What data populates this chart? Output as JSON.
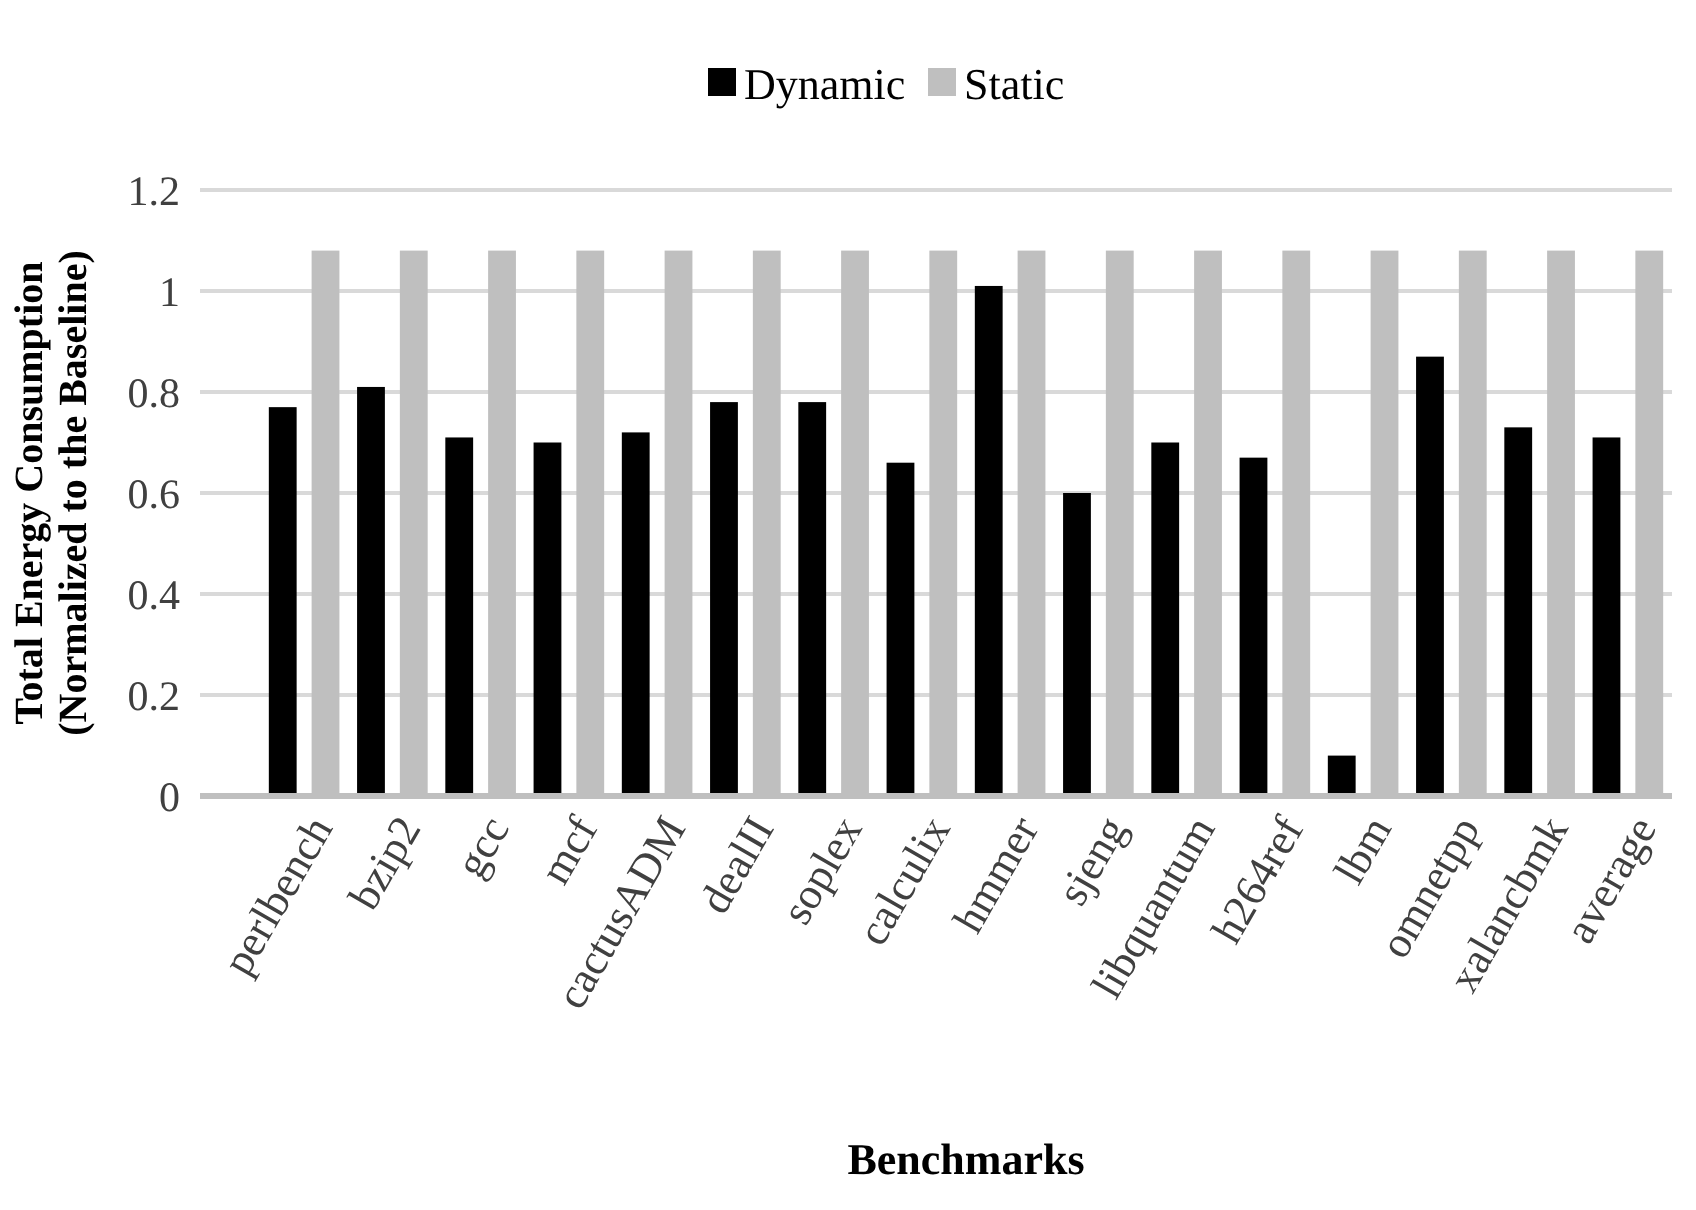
{
  "chart_data": {
    "type": "bar",
    "xlabel": "Benchmarks",
    "ylabel": "Total Energy Consumption\n(Normalized to the Baseline)",
    "categories": [
      "perlbench",
      "bzip2",
      "gcc",
      "mcf",
      "cactusADM",
      "dealII",
      "soplex",
      "calculix",
      "hmmer",
      "sjeng",
      "libquantum",
      "h264ref",
      "lbm",
      "omnetpp",
      "xalancbmk",
      "average"
    ],
    "series": [
      {
        "name": "Dynamic",
        "color": "#000000",
        "values": [
          0.77,
          0.81,
          0.71,
          0.7,
          0.72,
          0.78,
          0.78,
          0.66,
          1.01,
          0.6,
          0.7,
          0.67,
          0.08,
          0.87,
          0.73,
          0.71
        ]
      },
      {
        "name": "Static",
        "color": "#bfbfbf",
        "values": [
          1.08,
          1.08,
          1.08,
          1.08,
          1.08,
          1.08,
          1.08,
          1.08,
          1.08,
          1.08,
          1.08,
          1.08,
          1.08,
          1.08,
          1.08,
          1.08
        ]
      }
    ],
    "ylim": [
      0,
      1.2
    ],
    "yticks": [
      0,
      0.2,
      0.4,
      0.6,
      0.8,
      1,
      1.2
    ],
    "grid": "y",
    "legend": "top"
  }
}
